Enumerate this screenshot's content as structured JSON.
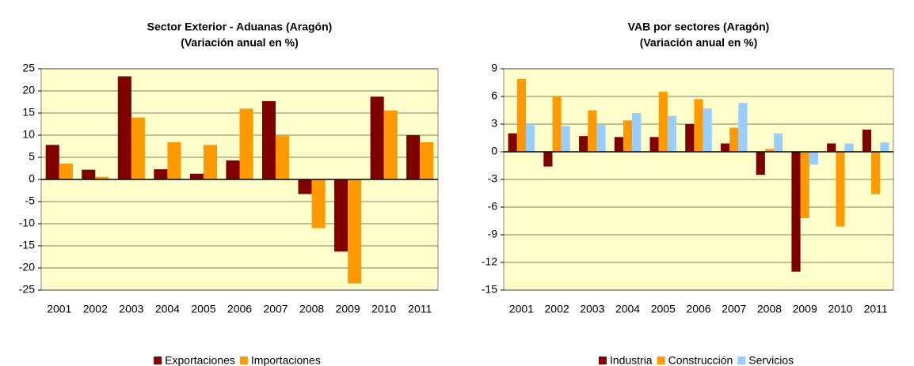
{
  "chart_data": [
    {
      "type": "bar",
      "title": [
        "Sector Exterior - Aduanas (Aragón)",
        "(Variación anual en %)"
      ],
      "categories": [
        "2001",
        "2002",
        "2003",
        "2004",
        "2005",
        "2006",
        "2007",
        "2008",
        "2009",
        "2010",
        "2011"
      ],
      "series": [
        {
          "name": "Exportaciones",
          "color": "#800000",
          "values": [
            7.8,
            2.2,
            23.3,
            2.3,
            1.3,
            4.3,
            17.7,
            -3.3,
            -16.3,
            18.7,
            10.0
          ]
        },
        {
          "name": "Importaciones",
          "color": "#ff9900",
          "values": [
            3.6,
            0.6,
            14.0,
            8.4,
            7.8,
            16.0,
            10.0,
            -11.0,
            -23.5,
            15.6,
            8.4
          ]
        }
      ],
      "ylim": [
        -25,
        25
      ],
      "yticks": [
        -25,
        -20,
        -15,
        -10,
        -5,
        0,
        5,
        10,
        15,
        20,
        25
      ],
      "grid": true,
      "legend": "bottom"
    },
    {
      "type": "bar",
      "title": [
        "VAB por sectores (Aragón)",
        "(Variación anual en %)"
      ],
      "categories": [
        "2001",
        "2002",
        "2003",
        "2004",
        "2005",
        "2006",
        "2007",
        "2008",
        "2009",
        "2010",
        "2011"
      ],
      "series": [
        {
          "name": "Industria",
          "color": "#800000",
          "values": [
            2.0,
            -1.6,
            1.7,
            1.6,
            1.6,
            3.0,
            0.9,
            -2.5,
            -13.0,
            0.9,
            2.4
          ]
        },
        {
          "name": "Construcción",
          "color": "#ff9900",
          "values": [
            7.9,
            6.0,
            4.5,
            3.4,
            6.5,
            5.7,
            2.6,
            0.3,
            -7.2,
            -8.1,
            -4.6
          ]
        },
        {
          "name": "Servicios",
          "color": "#99ccff",
          "values": [
            2.9,
            2.8,
            2.9,
            4.2,
            3.9,
            4.7,
            5.3,
            2.0,
            -1.4,
            0.9,
            1.0
          ]
        }
      ],
      "ylim": [
        -15,
        9
      ],
      "yticks": [
        -15,
        -12,
        -9,
        -6,
        -3,
        0,
        3,
        6,
        9
      ],
      "grid": true,
      "legend": "bottom"
    }
  ]
}
